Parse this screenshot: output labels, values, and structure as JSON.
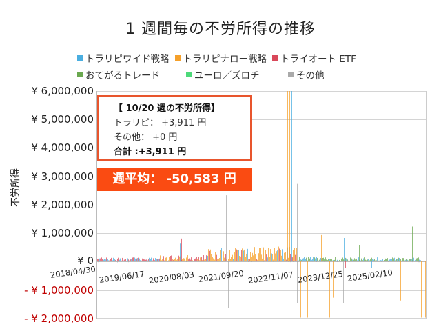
{
  "title": "1 週間毎の不労所得の推移",
  "legend": [
    {
      "label": "トラリピワイド戦略",
      "color": "#4aaee0"
    },
    {
      "label": "トラリピナロー戦略",
      "color": "#f5a02a"
    },
    {
      "label": "トライオート ETF",
      "color": "#d9485a"
    },
    {
      "label": "おてがるトレード",
      "color": "#6aa84f"
    },
    {
      "label": "ユーロ／ズロチ",
      "color": "#4dd97a"
    },
    {
      "label": "その他",
      "color": "#aaaaaa"
    }
  ],
  "info_box": {
    "heading": "【 10/20 週の不労所得】",
    "line1": "トラリピ： +3,911 円",
    "line2": "その他： +0 円",
    "line3": "合計 :+3,911 円"
  },
  "average_box": {
    "label": "週平均： -50,583 円"
  },
  "chart_data": {
    "type": "bar",
    "title": "1 週間毎の不労所得の推移",
    "xlabel": "",
    "ylabel": "不労所得",
    "ylim": [
      -2000000,
      6000000
    ],
    "grid": true,
    "legend_position": "top",
    "stacked": true,
    "y_ticks": [
      "¥ 6,000,000",
      "¥ 5,000,000",
      "¥ 4,000,000",
      "¥ 3,000,000",
      "¥ 2,000,000",
      "¥ 1,000,000",
      "¥ 0",
      "- ¥ 1,000,000",
      "- ¥ 2,000,000"
    ],
    "x_ticks": [
      "2018/04/30",
      "2019/06/17",
      "2020/08/03",
      "2021/09/20",
      "2022/11/07",
      "2023/12/25",
      "2025/02/10"
    ],
    "series": [
      {
        "name": "トラリピワイド戦略",
        "notable_values": [
          {
            "x": "2020/08",
            "value": 600000
          },
          {
            "x": "2022/12",
            "value": 6000000
          },
          {
            "x": "2022/12",
            "value": 5000000
          },
          {
            "x": "2024/10",
            "value": 800000
          },
          {
            "x": "2024/10",
            "value": -300000
          }
        ]
      },
      {
        "name": "トラリピナロー戦略",
        "notable_values": [
          {
            "x": "2022/05",
            "value": 3000000
          },
          {
            "x": "2022/10",
            "value": 6000000
          },
          {
            "x": "2022/11",
            "value": 6000000
          },
          {
            "x": "2023/04",
            "value": 5300000
          },
          {
            "x": "2022/11",
            "value": -2000000
          },
          {
            "x": "2023/02",
            "value": -2000000
          },
          {
            "x": "2025/08",
            "value": -2000000
          }
        ]
      },
      {
        "name": "トライオート ETF",
        "notable_values": [
          {
            "x": "2020/07",
            "value": 750000
          },
          {
            "x": "2024/01",
            "value": -250000
          }
        ]
      },
      {
        "name": "おてがるトレード",
        "notable_values": [
          {
            "x": "2024/04",
            "value": 550000
          },
          {
            "x": "2025/08",
            "value": 1200000
          }
        ]
      },
      {
        "name": "ユーロ／ズロチ",
        "notable_values": [
          {
            "x": "2022/05",
            "value": 3400000
          }
        ]
      },
      {
        "name": "その他",
        "notable_values": [
          {
            "x": "2021/09",
            "value": 2300000
          },
          {
            "x": "2021/10",
            "value": -1650000
          },
          {
            "x": "2022/12",
            "value": -1500000
          },
          {
            "x": "2023/03",
            "value": 2700000
          }
        ]
      }
    ],
    "annotations": [
      "【 10/20 週の不労所得】 トラリピ： +3,911 円 / その他： +0 円 / 合計 :+3,911 円",
      "週平均： -50,583 円"
    ]
  }
}
